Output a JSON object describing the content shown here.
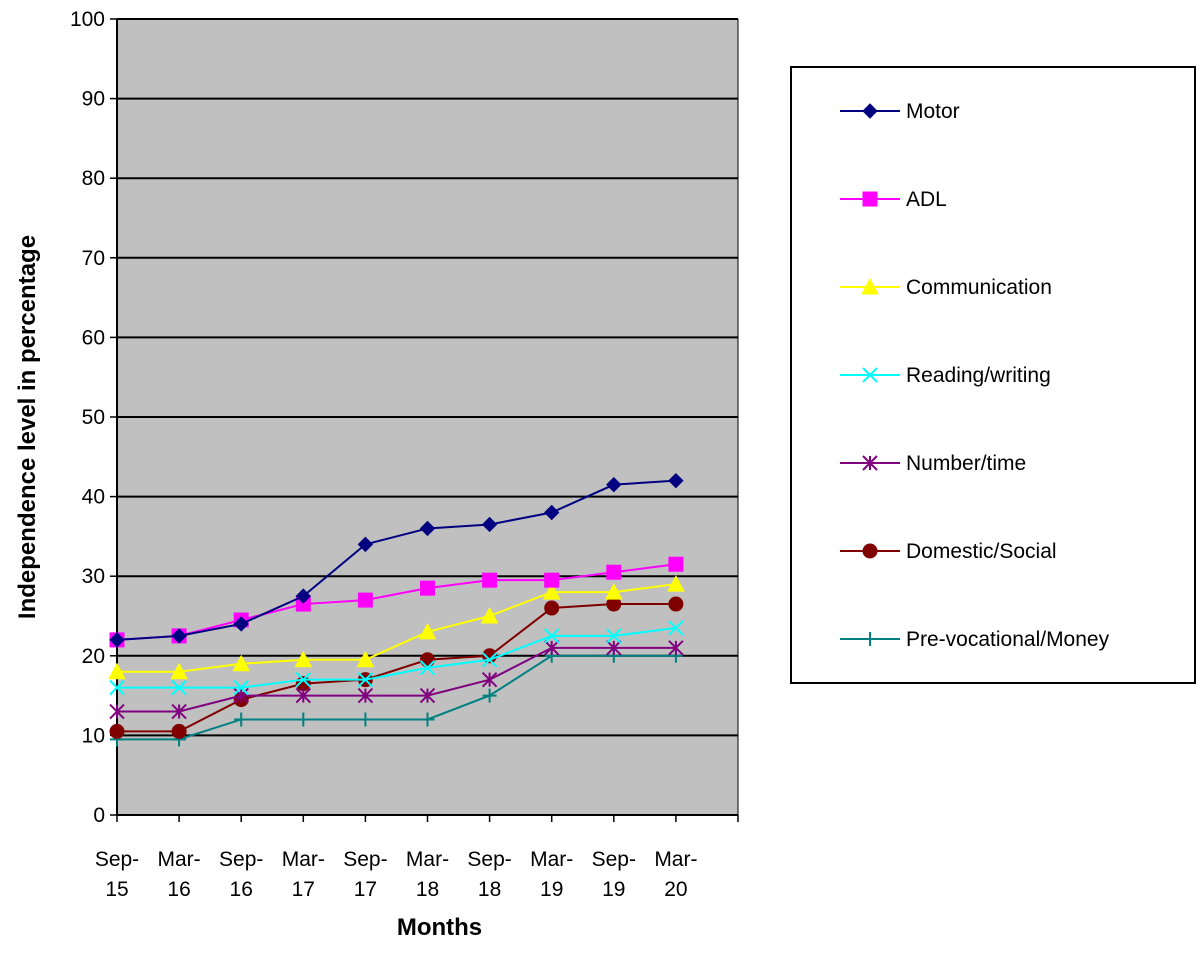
{
  "chart_data": {
    "type": "line",
    "xlabel": "Months",
    "ylabel": "Independence level in percentage",
    "ylim": [
      0,
      100
    ],
    "yticks": [
      0,
      10,
      20,
      30,
      40,
      50,
      60,
      70,
      80,
      90,
      100
    ],
    "grid": true,
    "plot_background": "#c0c0c0",
    "legend_placement": "right",
    "categories": [
      [
        "Sep-",
        "15"
      ],
      [
        "Mar-",
        "16"
      ],
      [
        "Sep-",
        "16"
      ],
      [
        "Mar-",
        "17"
      ],
      [
        "Sep-",
        "17"
      ],
      [
        "Mar-",
        "18"
      ],
      [
        "Sep-",
        "18"
      ],
      [
        "Mar-",
        "19"
      ],
      [
        "Sep-",
        "19"
      ],
      [
        "Mar-",
        "20"
      ]
    ],
    "series": [
      {
        "name": "Motor",
        "color": "#000080",
        "marker": "diamond",
        "values": [
          22,
          22.5,
          24,
          27.5,
          34,
          36,
          36.5,
          38,
          41.5,
          42
        ]
      },
      {
        "name": "ADL",
        "color": "#ff00ff",
        "marker": "square",
        "values": [
          22,
          22.5,
          24.5,
          26.5,
          27,
          28.5,
          29.5,
          29.5,
          30.5,
          31.5
        ]
      },
      {
        "name": "Communication",
        "color": "#ffff00",
        "marker": "triangle",
        "values": [
          18,
          18,
          19,
          19.5,
          19.5,
          23,
          25,
          28,
          28,
          29
        ]
      },
      {
        "name": "Reading/writing",
        "color": "#00ffff",
        "marker": "x",
        "values": [
          16,
          16,
          16,
          17,
          17,
          18.5,
          19.5,
          22.5,
          22.5,
          23.5
        ]
      },
      {
        "name": "Number/time",
        "color": "#800080",
        "marker": "star",
        "values": [
          13,
          13,
          15,
          15,
          15,
          15,
          17,
          21,
          21,
          21
        ]
      },
      {
        "name": "Domestic/Social",
        "color": "#800000",
        "marker": "circle",
        "values": [
          10.5,
          10.5,
          14.5,
          16.5,
          17,
          19.5,
          20,
          26,
          26.5,
          26.5
        ]
      },
      {
        "name": "Pre-vocational/Money",
        "color": "#008080",
        "marker": "plus",
        "values": [
          9.5,
          9.5,
          12,
          12,
          12,
          12,
          15,
          20,
          20,
          20
        ]
      }
    ]
  }
}
